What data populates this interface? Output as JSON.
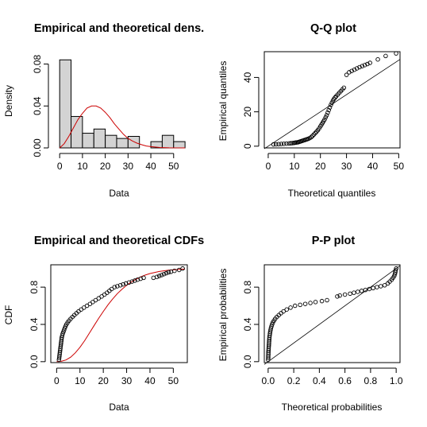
{
  "chart_data": [
    {
      "type": "histogram",
      "title": "Empirical and theoretical dens.",
      "xlabel": "Data",
      "ylabel": "Density",
      "xlim": [
        -2.5,
        56
      ],
      "ylim": [
        0,
        0.088
      ],
      "xticks": [
        0,
        10,
        20,
        30,
        40,
        50
      ],
      "yticks": [
        0.0,
        0.04,
        0.08
      ],
      "ytick_labels": [
        "0.00",
        "0.04",
        "0.08"
      ],
      "bins": [
        {
          "x0": 0,
          "x1": 5,
          "density": 0.084
        },
        {
          "x0": 5,
          "x1": 10,
          "density": 0.03
        },
        {
          "x0": 10,
          "x1": 15,
          "density": 0.014
        },
        {
          "x0": 15,
          "x1": 20,
          "density": 0.018
        },
        {
          "x0": 20,
          "x1": 25,
          "density": 0.012
        },
        {
          "x0": 25,
          "x1": 30,
          "density": 0.009
        },
        {
          "x0": 30,
          "x1": 35,
          "density": 0.011
        },
        {
          "x0": 35,
          "x1": 40,
          "density": 0.0
        },
        {
          "x0": 40,
          "x1": 45,
          "density": 0.006
        },
        {
          "x0": 45,
          "x1": 50,
          "density": 0.012
        },
        {
          "x0": 50,
          "x1": 55,
          "density": 0.006
        }
      ],
      "theoretical_curve": {
        "color": "#cc0000",
        "points": [
          [
            0,
            0.0
          ],
          [
            2,
            0.004
          ],
          [
            4,
            0.011
          ],
          [
            6,
            0.019
          ],
          [
            8,
            0.027
          ],
          [
            10,
            0.033
          ],
          [
            12,
            0.038
          ],
          [
            14,
            0.04
          ],
          [
            16,
            0.04
          ],
          [
            18,
            0.038
          ],
          [
            20,
            0.034
          ],
          [
            22,
            0.029
          ],
          [
            24,
            0.023
          ],
          [
            26,
            0.018
          ],
          [
            28,
            0.013
          ],
          [
            30,
            0.009
          ],
          [
            32,
            0.0065
          ],
          [
            34,
            0.0045
          ],
          [
            36,
            0.003
          ],
          [
            38,
            0.0018
          ],
          [
            40,
            0.0012
          ],
          [
            44,
            0.0004
          ],
          [
            48,
            0.0001
          ],
          [
            55,
            0.0
          ]
        ]
      },
      "bar_color": "#d3d3d3"
    },
    {
      "type": "scatter",
      "title": "Q-Q plot",
      "xlabel": "Theoretical quantiles",
      "ylabel": "Empirical quantiles",
      "xlim": [
        -1.5,
        50.5
      ],
      "ylim": [
        -1,
        55
      ],
      "xticks": [
        0,
        10,
        20,
        30,
        40,
        50
      ],
      "yticks": [
        0,
        20,
        40
      ],
      "reference_line": [
        [
          -1.5,
          -1.5
        ],
        [
          50.5,
          50.5
        ]
      ],
      "points": [
        [
          2,
          1.0
        ],
        [
          3,
          1.1
        ],
        [
          4,
          1.2
        ],
        [
          5,
          1.3
        ],
        [
          6,
          1.4
        ],
        [
          7,
          1.5
        ],
        [
          8,
          1.6
        ],
        [
          8.7,
          1.7
        ],
        [
          9.3,
          1.8
        ],
        [
          9.8,
          1.9
        ],
        [
          10.2,
          2.0
        ],
        [
          10.6,
          2.1
        ],
        [
          11,
          2.2
        ],
        [
          11.4,
          2.3
        ],
        [
          11.8,
          2.5
        ],
        [
          12.2,
          2.7
        ],
        [
          12.6,
          2.9
        ],
        [
          13,
          3.1
        ],
        [
          13.4,
          3.3
        ],
        [
          13.8,
          3.5
        ],
        [
          14.2,
          3.7
        ],
        [
          14.6,
          3.9
        ],
        [
          15,
          4.1
        ],
        [
          15.5,
          4.4
        ],
        [
          16,
          4.8
        ],
        [
          16.5,
          5.3
        ],
        [
          17,
          6.0
        ],
        [
          17.5,
          6.8
        ],
        [
          18,
          7.6
        ],
        [
          18.5,
          8.4
        ],
        [
          19,
          9.3
        ],
        [
          19.5,
          10.3
        ],
        [
          20,
          11.5
        ],
        [
          20.4,
          12.5
        ],
        [
          20.8,
          13.5
        ],
        [
          21.2,
          14.5
        ],
        [
          21.6,
          15.5
        ],
        [
          22,
          16.8
        ],
        [
          22.4,
          18.0
        ],
        [
          22.8,
          19.5
        ],
        [
          23.2,
          21.0
        ],
        [
          23.6,
          22.5
        ],
        [
          24,
          24.0
        ],
        [
          24.4,
          25.3
        ],
        [
          24.8,
          26.5
        ],
        [
          25.2,
          27.5
        ],
        [
          25.6,
          28.3
        ],
        [
          26,
          29.0
        ],
        [
          26.6,
          30.0
        ],
        [
          27.2,
          31.0
        ],
        [
          27.8,
          32.0
        ],
        [
          28.4,
          33.0
        ],
        [
          29,
          34.0
        ],
        [
          30,
          41.5
        ],
        [
          31,
          43.0
        ],
        [
          32,
          43.8
        ],
        [
          33,
          44.5
        ],
        [
          34,
          45.3
        ],
        [
          35,
          46.0
        ],
        [
          36,
          46.6
        ],
        [
          37,
          47.2
        ],
        [
          38,
          47.8
        ],
        [
          39,
          48.5
        ],
        [
          42,
          50.5
        ],
        [
          45,
          52.5
        ],
        [
          49,
          54.0
        ]
      ]
    },
    {
      "type": "line",
      "title": "Empirical and theoretical CDFs",
      "xlabel": "Data",
      "ylabel": "CDF",
      "xlim": [
        -2.5,
        56
      ],
      "ylim": [
        -0.01,
        1.04
      ],
      "xticks": [
        0,
        10,
        20,
        30,
        40,
        50
      ],
      "yticks": [
        0.0,
        0.4,
        0.8
      ],
      "ytick_labels": [
        "0.0",
        "0.4",
        "0.8"
      ],
      "theoretical_curve": {
        "color": "#cc0000",
        "points": [
          [
            0,
            0.0
          ],
          [
            2,
            0.004
          ],
          [
            4,
            0.018
          ],
          [
            6,
            0.048
          ],
          [
            8,
            0.095
          ],
          [
            10,
            0.155
          ],
          [
            12,
            0.225
          ],
          [
            14,
            0.305
          ],
          [
            16,
            0.385
          ],
          [
            18,
            0.465
          ],
          [
            20,
            0.54
          ],
          [
            22,
            0.61
          ],
          [
            24,
            0.672
          ],
          [
            26,
            0.73
          ],
          [
            28,
            0.778
          ],
          [
            30,
            0.82
          ],
          [
            32,
            0.855
          ],
          [
            34,
            0.885
          ],
          [
            36,
            0.91
          ],
          [
            38,
            0.93
          ],
          [
            40,
            0.946
          ],
          [
            44,
            0.968
          ],
          [
            48,
            0.982
          ],
          [
            52,
            0.99
          ],
          [
            55,
            0.994
          ]
        ]
      },
      "points": [
        [
          1.0,
          0.02
        ],
        [
          1.1,
          0.04
        ],
        [
          1.2,
          0.06
        ],
        [
          1.3,
          0.08
        ],
        [
          1.4,
          0.1
        ],
        [
          1.5,
          0.12
        ],
        [
          1.6,
          0.14
        ],
        [
          1.7,
          0.16
        ],
        [
          1.8,
          0.18
        ],
        [
          1.9,
          0.2
        ],
        [
          2.0,
          0.22
        ],
        [
          2.1,
          0.24
        ],
        [
          2.2,
          0.26
        ],
        [
          2.4,
          0.28
        ],
        [
          2.6,
          0.3
        ],
        [
          2.9,
          0.32
        ],
        [
          3.2,
          0.34
        ],
        [
          3.5,
          0.36
        ],
        [
          3.8,
          0.38
        ],
        [
          4.2,
          0.4
        ],
        [
          4.7,
          0.42
        ],
        [
          5.3,
          0.44
        ],
        [
          6.0,
          0.46
        ],
        [
          6.8,
          0.48
        ],
        [
          7.6,
          0.5
        ],
        [
          8.5,
          0.52
        ],
        [
          9.4,
          0.54
        ],
        [
          10.5,
          0.56
        ],
        [
          11.7,
          0.58
        ],
        [
          13.0,
          0.6
        ],
        [
          14.3,
          0.62
        ],
        [
          15.5,
          0.64
        ],
        [
          16.7,
          0.66
        ],
        [
          18.0,
          0.68
        ],
        [
          19.3,
          0.7
        ],
        [
          20.5,
          0.72
        ],
        [
          21.6,
          0.74
        ],
        [
          22.6,
          0.76
        ],
        [
          23.6,
          0.78
        ],
        [
          24.8,
          0.8
        ],
        [
          26.0,
          0.81
        ],
        [
          27.3,
          0.82
        ],
        [
          28.5,
          0.83
        ],
        [
          29.7,
          0.84
        ],
        [
          31.0,
          0.85
        ],
        [
          32.3,
          0.86
        ],
        [
          33.5,
          0.87
        ],
        [
          34.7,
          0.88
        ],
        [
          36.0,
          0.89
        ],
        [
          37.3,
          0.9
        ],
        [
          41.5,
          0.9
        ],
        [
          43.0,
          0.91
        ],
        [
          44.0,
          0.92
        ],
        [
          45.0,
          0.93
        ],
        [
          46.0,
          0.94
        ],
        [
          47.0,
          0.95
        ],
        [
          48.0,
          0.96
        ],
        [
          49.0,
          0.965
        ],
        [
          50.5,
          0.975
        ],
        [
          52.5,
          0.985
        ],
        [
          54.0,
          1.0
        ]
      ]
    },
    {
      "type": "scatter",
      "title": "P-P plot",
      "xlabel": "Theoretical probabilities",
      "ylabel": "Empirical probabilities",
      "xlim": [
        -0.03,
        1.03
      ],
      "ylim": [
        -0.01,
        1.04
      ],
      "xticks": [
        0.0,
        0.2,
        0.4,
        0.6,
        0.8,
        1.0
      ],
      "xtick_labels": [
        "0.0",
        "0.2",
        "0.4",
        "0.6",
        "0.8",
        "1.0"
      ],
      "yticks": [
        0.0,
        0.4,
        0.8
      ],
      "ytick_labels": [
        "0.0",
        "0.4",
        "0.8"
      ],
      "reference_line": [
        [
          -0.03,
          -0.03
        ],
        [
          1.03,
          1.03
        ]
      ],
      "points": [
        [
          0.0,
          0.02
        ],
        [
          0.001,
          0.04
        ],
        [
          0.001,
          0.06
        ],
        [
          0.002,
          0.08
        ],
        [
          0.002,
          0.1
        ],
        [
          0.003,
          0.12
        ],
        [
          0.004,
          0.14
        ],
        [
          0.005,
          0.16
        ],
        [
          0.006,
          0.18
        ],
        [
          0.007,
          0.2
        ],
        [
          0.008,
          0.22
        ],
        [
          0.009,
          0.24
        ],
        [
          0.01,
          0.26
        ],
        [
          0.012,
          0.28
        ],
        [
          0.014,
          0.3
        ],
        [
          0.016,
          0.32
        ],
        [
          0.019,
          0.34
        ],
        [
          0.022,
          0.36
        ],
        [
          0.026,
          0.38
        ],
        [
          0.031,
          0.4
        ],
        [
          0.037,
          0.42
        ],
        [
          0.045,
          0.44
        ],
        [
          0.055,
          0.46
        ],
        [
          0.068,
          0.48
        ],
        [
          0.083,
          0.5
        ],
        [
          0.1,
          0.52
        ],
        [
          0.12,
          0.54
        ],
        [
          0.145,
          0.56
        ],
        [
          0.175,
          0.58
        ],
        [
          0.21,
          0.6
        ],
        [
          0.25,
          0.61
        ],
        [
          0.29,
          0.62
        ],
        [
          0.33,
          0.63
        ],
        [
          0.37,
          0.64
        ],
        [
          0.42,
          0.65
        ],
        [
          0.46,
          0.66
        ],
        [
          0.54,
          0.7
        ],
        [
          0.56,
          0.71
        ],
        [
          0.6,
          0.72
        ],
        [
          0.64,
          0.73
        ],
        [
          0.67,
          0.74
        ],
        [
          0.7,
          0.75
        ],
        [
          0.73,
          0.76
        ],
        [
          0.76,
          0.77
        ],
        [
          0.79,
          0.78
        ],
        [
          0.82,
          0.79
        ],
        [
          0.85,
          0.8
        ],
        [
          0.88,
          0.81
        ],
        [
          0.91,
          0.82
        ],
        [
          0.935,
          0.84
        ],
        [
          0.95,
          0.86
        ],
        [
          0.965,
          0.88
        ],
        [
          0.975,
          0.9
        ],
        [
          0.985,
          0.92
        ],
        [
          0.99,
          0.94
        ],
        [
          0.993,
          0.96
        ],
        [
          0.996,
          0.98
        ],
        [
          1.0,
          1.0
        ]
      ]
    }
  ]
}
